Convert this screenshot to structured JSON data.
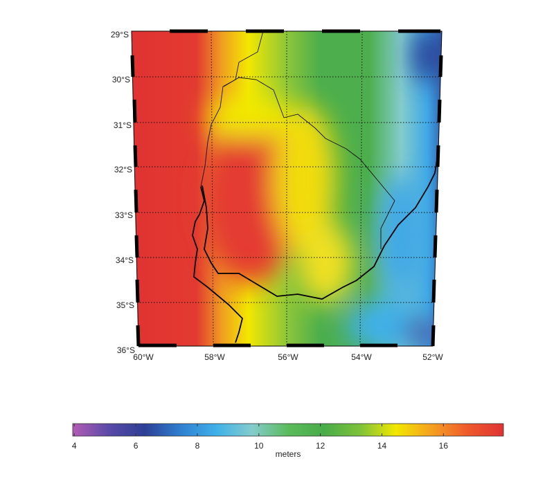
{
  "map": {
    "lat_labels": [
      "29°S",
      "30°S",
      "31°S",
      "32°S",
      "33°S",
      "34°S",
      "35°S",
      "36°S"
    ],
    "lon_labels": [
      "60°W",
      "58°W",
      "56°W",
      "54°W",
      "52°W"
    ]
  },
  "colorbar": {
    "label": "meters",
    "lim": [
      3.95,
      17.95
    ],
    "ticks": [
      4,
      6,
      8,
      10,
      12,
      14,
      16
    ],
    "colors": [
      "#b35cb5",
      "#5a4aa8",
      "#2c3f94",
      "#2f7fd0",
      "#3fb0e8",
      "#84cccc",
      "#5bbb5b",
      "#48ac48",
      "#7cc23a",
      "#f2e800",
      "#f5a020",
      "#ee5a2c",
      "#e03232"
    ]
  }
}
